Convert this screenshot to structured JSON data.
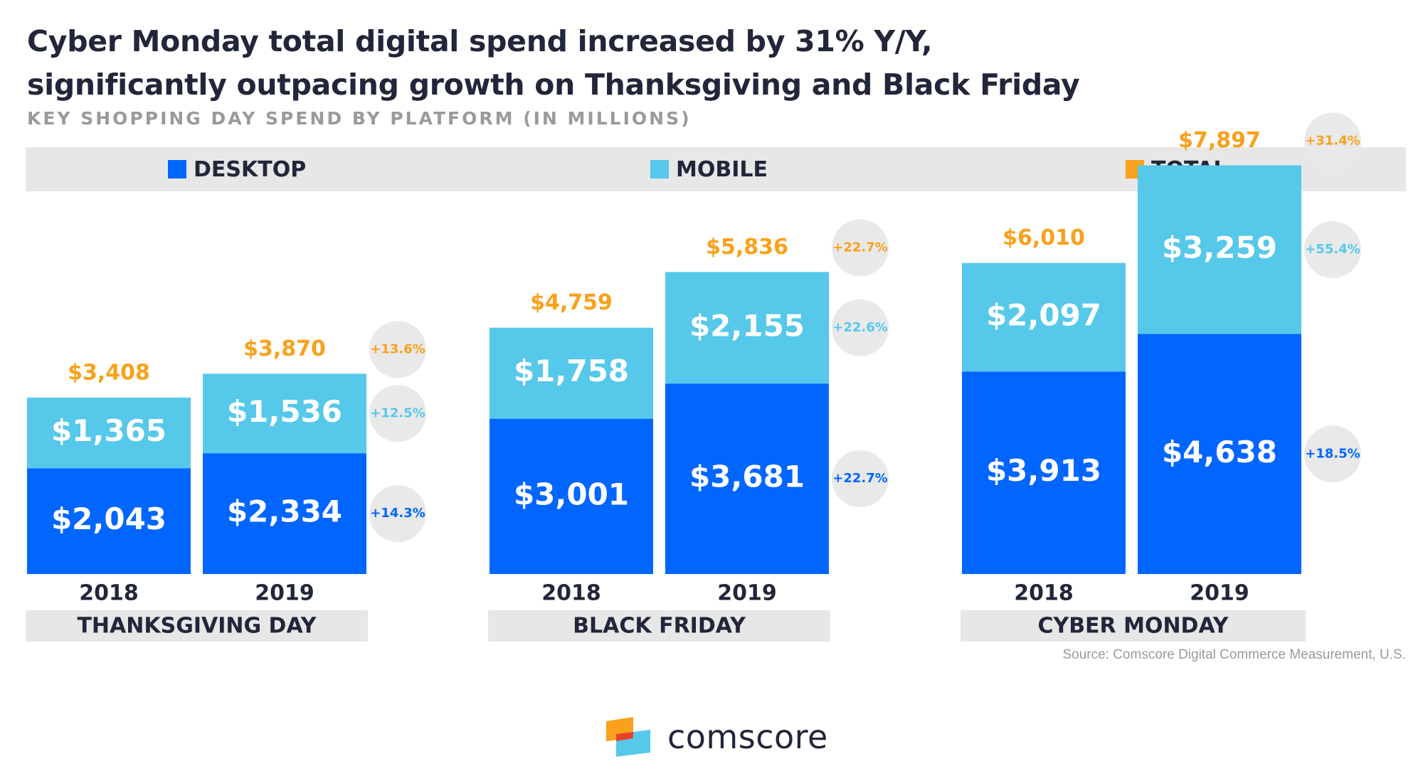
{
  "header": {
    "title_line1": "Cyber Monday total digital spend increased by 31% Y/Y,",
    "title_line2": "significantly outpacing growth on Thanksgiving and Black Friday",
    "subtitle": "KEY SHOPPING DAY SPEND BY PLATFORM (IN MILLIONS)"
  },
  "legend": {
    "desktop": "DESKTOP",
    "mobile": "MOBILE",
    "total": "TOTAL"
  },
  "colors": {
    "desktop": "#0066ff",
    "mobile": "#56c8ea",
    "total": "#f9a11b",
    "title": "#22263a",
    "muted": "#9a9a9a",
    "band": "#e7e7e7",
    "bubble": "#e9e9e9"
  },
  "chart_data": {
    "type": "bar",
    "stacked": true,
    "title": "Cyber Monday total digital spend increased by 31% Y/Y, significantly outpacing growth on Thanksgiving and Black Friday",
    "subtitle": "KEY SHOPPING DAY SPEND BY PLATFORM (IN MILLIONS)",
    "ylim": [
      0,
      9000
    ],
    "legend_position": "top",
    "grid": false,
    "groups": [
      {
        "label": "THANKSGIVING DAY",
        "bars": [
          {
            "year": "2018",
            "desktop": 2043,
            "mobile": 1365,
            "total": 3408,
            "desktop_label": "$2,043",
            "mobile_label": "$1,365",
            "total_label": "$3,408"
          },
          {
            "year": "2019",
            "desktop": 2334,
            "mobile": 1536,
            "total": 3870,
            "desktop_label": "$2,334",
            "mobile_label": "$1,536",
            "total_label": "$3,870"
          }
        ],
        "growth": {
          "desktop": "+14.3%",
          "mobile": "+12.5%",
          "total": "+13.6%"
        }
      },
      {
        "label": "BLACK FRIDAY",
        "bars": [
          {
            "year": "2018",
            "desktop": 3001,
            "mobile": 1758,
            "total": 4759,
            "desktop_label": "$3,001",
            "mobile_label": "$1,758",
            "total_label": "$4,759"
          },
          {
            "year": "2019",
            "desktop": 3681,
            "mobile": 2155,
            "total": 5836,
            "desktop_label": "$3,681",
            "mobile_label": "$2,155",
            "total_label": "$5,836"
          }
        ],
        "growth": {
          "desktop": "+22.7%",
          "mobile": "+22.6%",
          "total": "+22.7%"
        }
      },
      {
        "label": "CYBER MONDAY",
        "bars": [
          {
            "year": "2018",
            "desktop": 3913,
            "mobile": 2097,
            "total": 6010,
            "desktop_label": "$3,913",
            "mobile_label": "$2,097",
            "total_label": "$6,010"
          },
          {
            "year": "2019",
            "desktop": 4638,
            "mobile": 3259,
            "total": 7897,
            "desktop_label": "$4,638",
            "mobile_label": "$3,259",
            "total_label": "$7,897"
          }
        ],
        "growth": {
          "desktop": "+18.5%",
          "mobile": "+55.4%",
          "total": "+31.4%"
        }
      }
    ]
  },
  "footer": {
    "source": "Source: Comscore Digital Commerce Measurement, U.S.",
    "logo_text": "comscore"
  }
}
